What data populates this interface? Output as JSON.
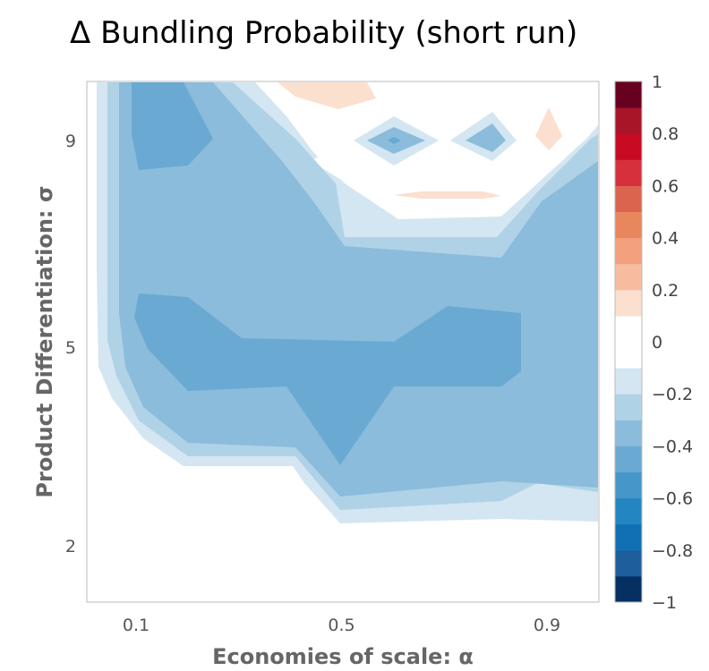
{
  "chart_data": {
    "type": "contour",
    "title": "Δ Bundling Probability (short run)",
    "xlabel": "Economies of scale: α",
    "ylabel": "Product Differentiation: σ",
    "x_ticks": [
      0.1,
      0.5,
      0.9
    ],
    "y_ticks": [
      2,
      5,
      9
    ],
    "x_tick_labels": [
      "0.1",
      "0.5",
      "0.9"
    ],
    "y_tick_labels": [
      "2",
      "5",
      "9"
    ],
    "colorbar": {
      "min": -1,
      "max": 1,
      "tick_labels": [
        "1",
        "0.8",
        "0.6",
        "0.4",
        "0.2",
        "0",
        "−0.2",
        "−0.4",
        "−0.6",
        "−0.8",
        "−1"
      ],
      "colors": [
        "#053061",
        "#1f5e9d",
        "#1170b4",
        "#2486c1",
        "#4696c9",
        "#6aa9d2",
        "#8bbcdb",
        "#b0d2e7",
        "#d3e6f1",
        "#ffffff",
        "#ffffff",
        "#fbdfcf",
        "#f6bca0",
        "#f2a07d",
        "#e8875d",
        "#db644f",
        "#d6303c",
        "#c90a23",
        "#a81529",
        "#68001f"
      ]
    },
    "regions": [
      {
        "level": -0.2,
        "color": "#d3e6f1"
      },
      {
        "level": -0.3,
        "color": "#b0d2e7"
      },
      {
        "level": -0.4,
        "color": "#8bbcdb"
      },
      {
        "level": -0.5,
        "color": "#6aa9d2"
      },
      {
        "level": -0.55,
        "color": "#4696c9"
      },
      {
        "level": 0.1,
        "color": "#fbdfcf"
      }
    ]
  }
}
